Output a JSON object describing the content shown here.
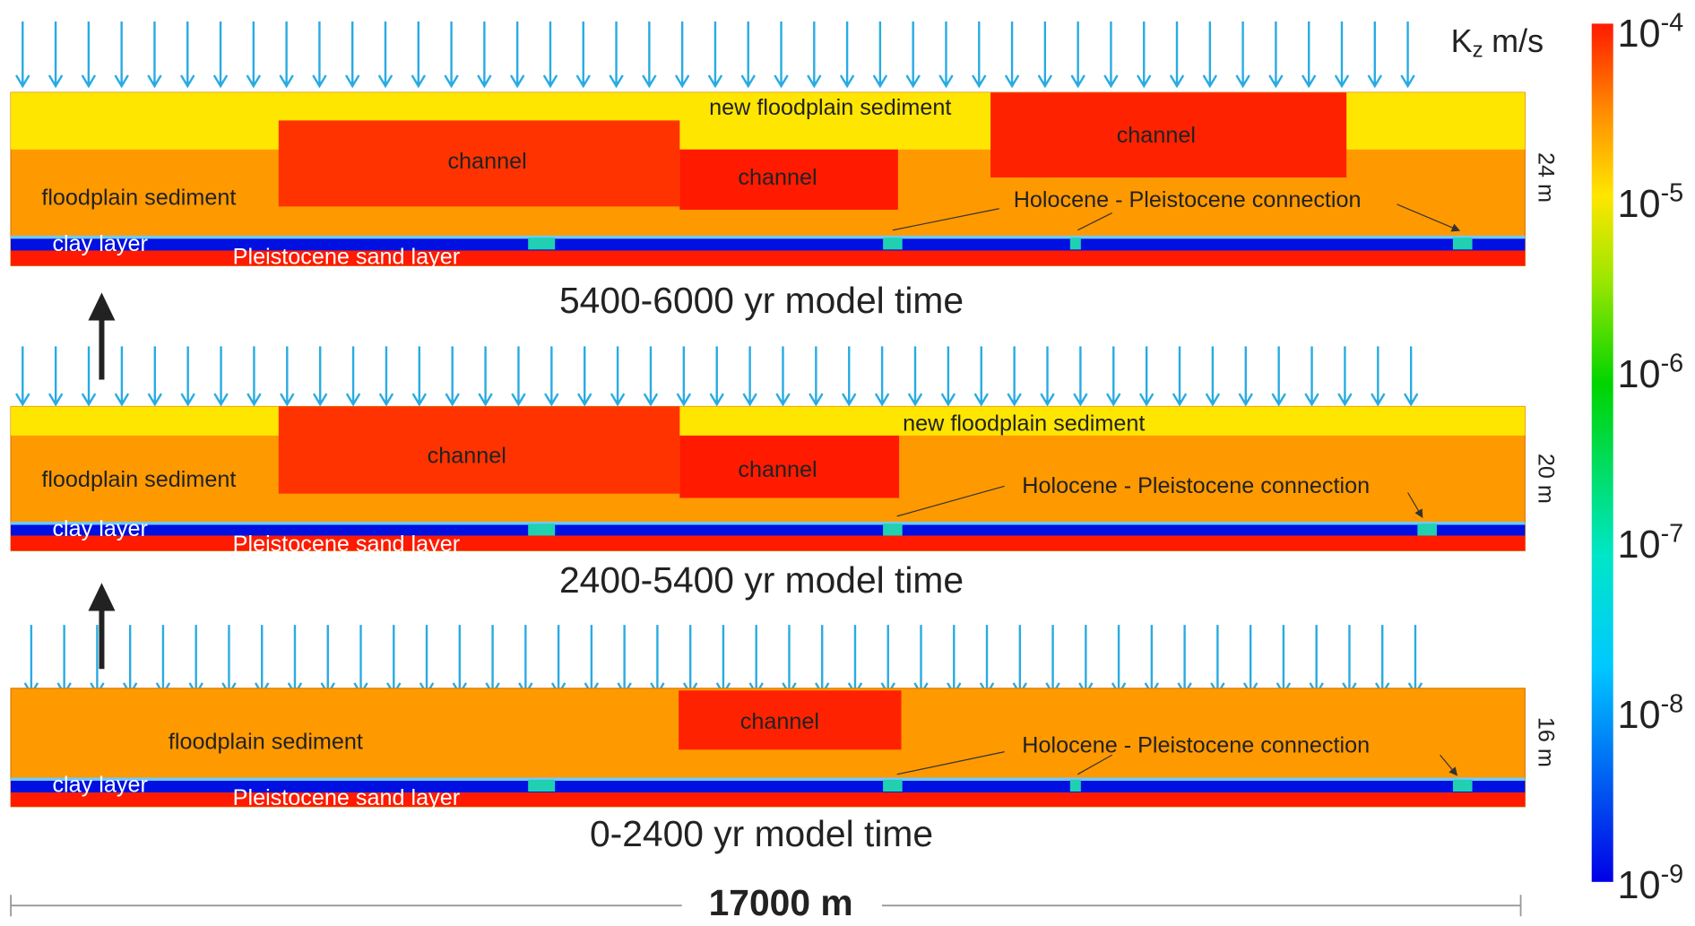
{
  "colorbar": {
    "title": {
      "main": "K",
      "sub": "z",
      "unit": "m/s"
    },
    "ticks": [
      {
        "base": "10",
        "exp": "-4"
      },
      {
        "base": "10",
        "exp": "-5"
      },
      {
        "base": "10",
        "exp": "-6"
      },
      {
        "base": "10",
        "exp": "-7"
      },
      {
        "base": "10",
        "exp": "-8"
      },
      {
        "base": "10",
        "exp": "-9"
      }
    ]
  },
  "panels": [
    {
      "time_label": "5400-6000 yr model time",
      "thickness": "24 m",
      "new_floodplain": "new floodplain sediment",
      "channels": [
        "channel",
        "channel",
        "channel"
      ],
      "floodplain": "floodplain sediment",
      "connection": "Holocene - Pleistocene connection",
      "clay": "clay layer",
      "sand": "Pleistocene sand layer"
    },
    {
      "time_label": "2400-5400 yr model time",
      "thickness": "20 m",
      "new_floodplain": "new floodplain sediment",
      "channels": [
        "channel",
        "channel"
      ],
      "floodplain": "floodplain sediment",
      "connection": "Holocene - Pleistocene connection",
      "clay": "clay layer",
      "sand": "Pleistocene sand layer"
    },
    {
      "time_label": "0-2400 yr model time",
      "thickness": "16 m",
      "channels": [
        "channel"
      ],
      "floodplain": "floodplain sediment",
      "connection": "Holocene - Pleistocene connection",
      "clay": "clay layer",
      "sand": "Pleistocene sand layer"
    }
  ],
  "scale_bar": "17000 m"
}
